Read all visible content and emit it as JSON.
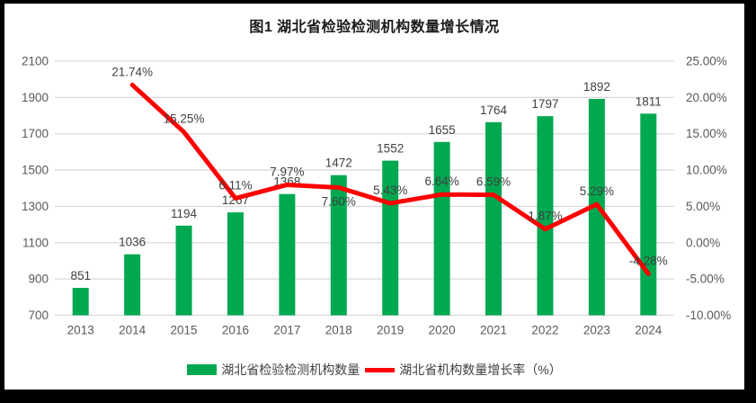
{
  "frame": {
    "background": "#000000",
    "chart_background": "#ffffff"
  },
  "title": "图1 湖北省检验检测机构数量增长情况",
  "chart_data": {
    "type": "bar+line",
    "title": "图1 湖北省检验检测机构数量增长情况",
    "categories": [
      "2013",
      "2014",
      "2015",
      "2016",
      "2017",
      "2018",
      "2019",
      "2020",
      "2021",
      "2022",
      "2023",
      "2024"
    ],
    "series": [
      {
        "name": "湖北省检验检测机构数量",
        "type": "bar",
        "color": "#00A850",
        "values": [
          851,
          1036,
          1194,
          1267,
          1368,
          1472,
          1552,
          1655,
          1764,
          1797,
          1892,
          1811
        ],
        "labels": [
          "851",
          "1036",
          "1194",
          "1267",
          "1368",
          "1472",
          "1552",
          "1655",
          "1764",
          "1797",
          "1892",
          "1811"
        ]
      },
      {
        "name": "湖北省机构数量增长率（%）",
        "type": "line",
        "color": "#FF0000",
        "values": [
          null,
          21.74,
          15.25,
          6.11,
          7.97,
          7.6,
          5.43,
          6.64,
          6.59,
          1.87,
          5.29,
          -4.28
        ],
        "labels": [
          null,
          "21.74%",
          "15.25%",
          "6.11%",
          "7.97%",
          "7.60%",
          "5.43%",
          "6.64%",
          "6.59%",
          "1.87%",
          "5.29%",
          "-4.28%"
        ],
        "labels_below_indices": [
          5
        ]
      }
    ],
    "axes": {
      "left": {
        "min": 700,
        "max": 2100,
        "tick_step": 200,
        "ticks": [
          "2100",
          "1900",
          "1700",
          "1500",
          "1300",
          "1100",
          "900",
          "700"
        ]
      },
      "right": {
        "min": -10,
        "max": 25,
        "tick_step": 5,
        "ticks": [
          "25.00%",
          "20.00%",
          "15.00%",
          "10.00%",
          "5.00%",
          "0.00%",
          "-5.00%",
          "-10.00%"
        ]
      }
    },
    "grid": true,
    "gridline_color": "#D9D9D9",
    "tick_label_color": "#595959",
    "data_label_color": "#404040",
    "legend_position": "bottom"
  }
}
